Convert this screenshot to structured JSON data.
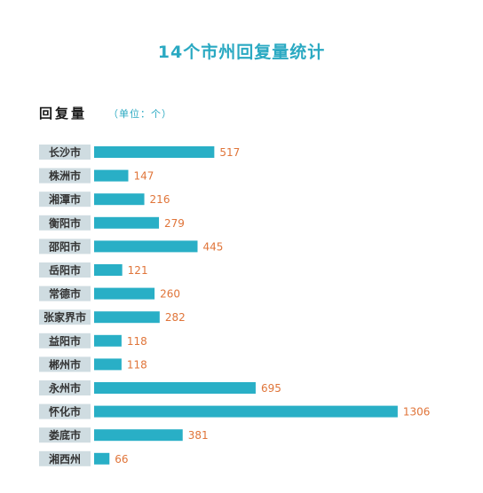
{
  "colors": {
    "title": "#2aa9c2",
    "bar": "#29afc6",
    "label_bg": "#cfdce1",
    "value": "#e0753a",
    "unit": "#2aa9c2",
    "category_text": "#333333"
  },
  "title": "14个市州回复量统计",
  "subhead": "回复量",
  "unit": "（单位：个）",
  "chart_data": {
    "type": "bar",
    "orientation": "horizontal",
    "title": "14个市州回复量统计",
    "ylabel": "回复量",
    "unit": "（单位：个）",
    "categories": [
      "长沙市",
      "株洲市",
      "湘潭市",
      "衡阳市",
      "邵阳市",
      "岳阳市",
      "常德市",
      "张家界市",
      "益阳市",
      "郴州市",
      "永州市",
      "怀化市",
      "娄底市",
      "湘西州"
    ],
    "values": [
      517,
      147,
      216,
      279,
      445,
      121,
      260,
      282,
      118,
      118,
      695,
      1306,
      381,
      66
    ],
    "xlim": [
      0,
      1306
    ],
    "grid": false,
    "legend": "none"
  }
}
